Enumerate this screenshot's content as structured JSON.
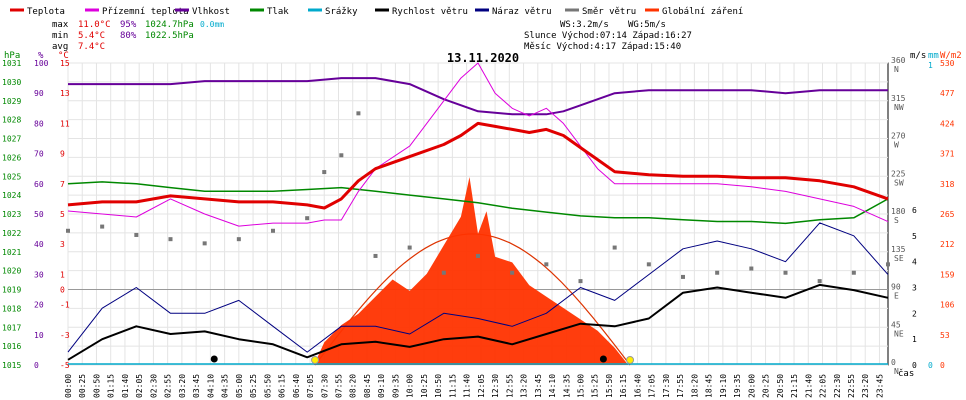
{
  "chart_data": {
    "type": "line",
    "title": "13.11.2020",
    "legend": [
      {
        "label": "Teplota",
        "color": "#e00000"
      },
      {
        "label": "Přízemní teplota",
        "color": "#dd00dd"
      },
      {
        "label": "Vlhkost",
        "color": "#660099"
      },
      {
        "label": "Tlak",
        "color": "#008800"
      },
      {
        "label": "Srážky",
        "color": "#00aacc"
      },
      {
        "label": "Rychlost větru",
        "color": "#000000"
      },
      {
        "label": "Náraz větru",
        "color": "#000080"
      },
      {
        "label": "Směr větru",
        "color": "#777777"
      },
      {
        "label": "Globální záření",
        "color": "#ff3300"
      }
    ],
    "stats": {
      "max": {
        "label": "max",
        "temp": "11.0°C",
        "hum": "95%",
        "press": "1024.7hPa",
        "rain": "0.0mm"
      },
      "min": {
        "label": "min",
        "temp": "5.4°C",
        "hum": "80%",
        "press": "1022.5hPa"
      },
      "avg": {
        "label": "avg",
        "temp": "7.4°C"
      }
    },
    "info": {
      "ws": "WS:3.2m/s",
      "wg": "WG:5m/s",
      "sun": "Slunce Východ:07:14  Západ:16:27",
      "moon": "Měsíc  Východ:4:17   Západ:15:40"
    },
    "axis_units": {
      "hpa": "hPa",
      "pct": "%",
      "degc": "°C",
      "ms": "m/s",
      "mm": "mm",
      "wm2": "W/m2",
      "xlabel": "čas"
    },
    "ticks": {
      "hpa": [
        "1015",
        "1016",
        "1017",
        "1018",
        "1019",
        "1020",
        "1021",
        "1022",
        "1023",
        "1024",
        "1025",
        "1026",
        "1027",
        "1028",
        "1029",
        "1030",
        "1031"
      ],
      "pct": [
        "0",
        "10",
        "20",
        "30",
        "40",
        "50",
        "60",
        "70",
        "80",
        "90",
        "100"
      ],
      "degc": [
        "-5",
        "-3",
        "-1",
        "0",
        "1",
        "3",
        "5",
        "7",
        "9",
        "11",
        "13",
        "15"
      ],
      "dir": [
        "N",
        "NE",
        "E",
        "SE",
        "S",
        "SW",
        "W",
        "NW",
        "N"
      ],
      "dir_deg": [
        "0",
        "45",
        "90",
        "135",
        "180",
        "225",
        "270",
        "315",
        "360"
      ],
      "ms": [
        "0",
        "1",
        "2",
        "3",
        "4",
        "5",
        "6"
      ],
      "mm": [
        "0",
        "1"
      ],
      "wm2": [
        "0",
        "53",
        "106",
        "159",
        "212",
        "265",
        "318",
        "371",
        "424",
        "477",
        "530"
      ]
    },
    "x_ticks": [
      "00:00",
      "00:25",
      "00:50",
      "01:15",
      "01:40",
      "02:05",
      "02:30",
      "02:55",
      "03:20",
      "03:45",
      "04:10",
      "04:35",
      "05:00",
      "05:25",
      "05:50",
      "06:15",
      "06:40",
      "07:05",
      "07:30",
      "07:55",
      "08:20",
      "08:45",
      "09:10",
      "09:35",
      "10:00",
      "10:25",
      "10:50",
      "11:15",
      "11:40",
      "12:05",
      "12:30",
      "12:55",
      "13:20",
      "13:45",
      "14:10",
      "14:35",
      "15:00",
      "15:25",
      "15:50",
      "16:15",
      "16:40",
      "17:05",
      "17:30",
      "17:55",
      "18:20",
      "18:45",
      "19:10",
      "19:35",
      "20:00",
      "20:25",
      "20:50",
      "21:15",
      "21:40",
      "22:05",
      "22:30",
      "22:55",
      "23:20",
      "23:45"
    ],
    "x_range_hours": [
      0,
      24
    ],
    "series": [
      {
        "name": "Teplota",
        "unit": "°C",
        "x": [
          0,
          1,
          2,
          3,
          4,
          5,
          6,
          7,
          7.5,
          8,
          8.5,
          9,
          10,
          11,
          11.5,
          12,
          12.5,
          13,
          13.5,
          14,
          14.5,
          15,
          15.5,
          16,
          17,
          18,
          19,
          20,
          21,
          22,
          23,
          24
        ],
        "values": [
          5.6,
          5.8,
          5.8,
          6.2,
          6.0,
          5.8,
          5.8,
          5.6,
          5.4,
          6.0,
          7.2,
          8.0,
          8.8,
          9.6,
          10.2,
          11.0,
          10.8,
          10.6,
          10.4,
          10.6,
          10.2,
          9.4,
          8.6,
          7.8,
          7.6,
          7.5,
          7.5,
          7.4,
          7.4,
          7.2,
          6.8,
          6.0
        ]
      },
      {
        "name": "Přízemní teplota",
        "unit": "°C",
        "x": [
          0,
          1,
          2,
          3,
          4,
          5,
          6,
          7,
          7.5,
          8,
          8.5,
          9,
          10,
          11,
          11.5,
          12,
          12.5,
          13,
          13.5,
          14,
          14.5,
          15,
          15.5,
          16,
          17,
          18,
          19,
          20,
          21,
          22,
          23,
          24
        ],
        "values": [
          5.2,
          5.0,
          4.8,
          6.0,
          5.0,
          4.2,
          4.4,
          4.4,
          4.6,
          4.6,
          6.5,
          8.0,
          9.5,
          12.5,
          14.0,
          15.0,
          13.0,
          12.0,
          11.5,
          12.0,
          11.0,
          9.5,
          8.0,
          7.0,
          7.0,
          7.0,
          7.0,
          6.8,
          6.5,
          6.0,
          5.5,
          4.5
        ]
      },
      {
        "name": "Vlhkost",
        "unit": "%",
        "x": [
          0,
          1,
          2,
          3,
          4,
          5,
          6,
          7,
          8,
          9,
          10,
          11,
          12,
          13,
          14,
          14.5,
          15,
          16,
          17,
          18,
          19,
          20,
          21,
          22,
          23,
          24
        ],
        "values": [
          93,
          93,
          93,
          93,
          94,
          94,
          94,
          94,
          95,
          95,
          93,
          88,
          84,
          83,
          83,
          84,
          86,
          90,
          91,
          91,
          91,
          91,
          90,
          91,
          91,
          91
        ]
      },
      {
        "name": "Tlak",
        "unit": "hPa",
        "x": [
          0,
          1,
          2,
          3,
          4,
          5,
          6,
          7,
          8,
          9,
          10,
          11,
          12,
          13,
          14,
          15,
          16,
          17,
          18,
          19,
          20,
          21,
          22,
          23,
          24
        ],
        "values": [
          1024.6,
          1024.7,
          1024.6,
          1024.4,
          1024.2,
          1024.2,
          1024.2,
          1024.3,
          1024.4,
          1024.2,
          1024.0,
          1023.8,
          1023.6,
          1023.3,
          1023.1,
          1022.9,
          1022.8,
          1022.8,
          1022.7,
          1022.6,
          1022.6,
          1022.5,
          1022.7,
          1022.8,
          1023.8
        ]
      },
      {
        "name": "Srážky",
        "unit": "mm",
        "x": [
          0,
          24
        ],
        "values": [
          0,
          0
        ]
      },
      {
        "name": "Rychlost větru",
        "unit": "m/s",
        "x": [
          0,
          1,
          2,
          3,
          4,
          5,
          6,
          7,
          8,
          9,
          10,
          11,
          12,
          13,
          14,
          15,
          16,
          17,
          18,
          19,
          20,
          21,
          22,
          23,
          24
        ],
        "values": [
          0.2,
          1.0,
          1.5,
          1.2,
          1.3,
          1.0,
          0.8,
          0.3,
          0.8,
          0.9,
          0.7,
          1.0,
          1.1,
          0.8,
          1.2,
          1.6,
          1.5,
          1.8,
          2.8,
          3.0,
          2.8,
          2.6,
          3.1,
          2.9,
          2.6
        ]
      },
      {
        "name": "Náraz větru",
        "unit": "m/s",
        "x": [
          0,
          1,
          2,
          3,
          4,
          5,
          6,
          7,
          8,
          9,
          10,
          11,
          12,
          13,
          14,
          15,
          16,
          17,
          18,
          19,
          20,
          21,
          22,
          23,
          24
        ],
        "values": [
          0.5,
          2.2,
          3.0,
          2.0,
          2.0,
          2.5,
          1.5,
          0.5,
          1.5,
          1.5,
          1.2,
          2.0,
          1.8,
          1.5,
          2.0,
          3.0,
          2.5,
          3.5,
          4.5,
          4.8,
          4.5,
          4.0,
          5.5,
          5.0,
          3.5
        ]
      },
      {
        "name": "Směr větru",
        "unit": "°",
        "x": [
          0,
          1,
          2,
          3,
          4,
          5,
          6,
          7,
          7.5,
          8,
          8.5,
          9,
          10,
          11,
          12,
          13,
          14,
          15,
          16,
          17,
          18,
          19,
          20,
          21,
          22,
          23,
          24
        ],
        "values": [
          160,
          165,
          155,
          150,
          145,
          150,
          160,
          175,
          230,
          250,
          300,
          130,
          140,
          110,
          130,
          110,
          120,
          100,
          140,
          120,
          105,
          110,
          115,
          110,
          100,
          110,
          120
        ]
      },
      {
        "name": "Globální záření",
        "unit": "W/m2",
        "x": [
          7.2,
          7.5,
          8,
          8.5,
          9,
          9.5,
          10,
          10.5,
          11,
          11.5,
          11.75,
          12,
          12.25,
          12.5,
          13,
          13.5,
          14,
          14.5,
          15,
          15.5,
          16,
          16.4
        ],
        "values": [
          0,
          40,
          70,
          90,
          120,
          150,
          130,
          160,
          210,
          260,
          330,
          230,
          270,
          190,
          180,
          140,
          120,
          100,
          80,
          60,
          30,
          0
        ]
      }
    ],
    "theoretical_radiation_max": 230,
    "sunrise": 7.23,
    "sunset": 16.45,
    "grid": true
  }
}
